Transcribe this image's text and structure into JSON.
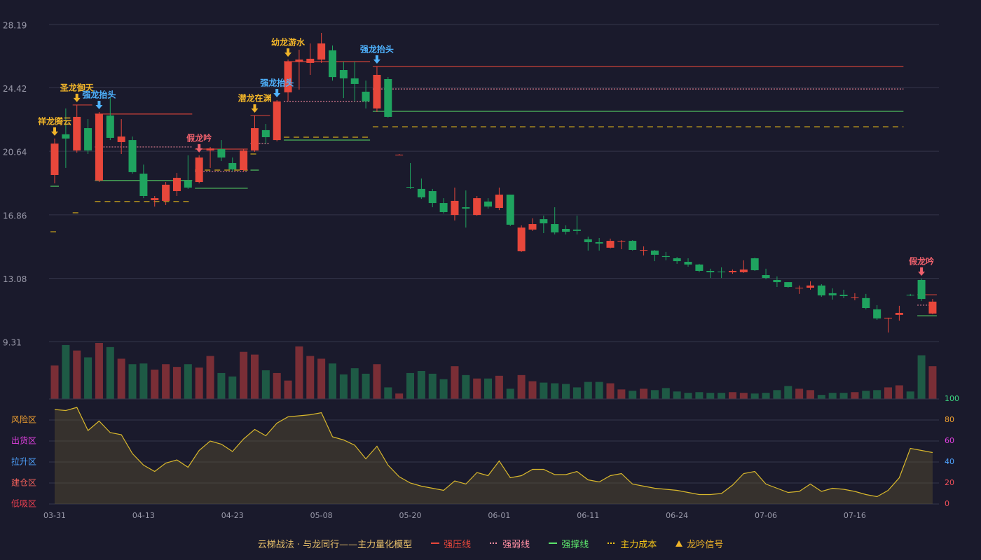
{
  "chart_data": [
    {
      "type": "candlestick",
      "categories": [
        "03-31",
        null,
        null,
        null,
        null,
        null,
        null,
        null,
        "04-13",
        null,
        null,
        null,
        null,
        null,
        null,
        null,
        "04-23",
        null,
        null,
        null,
        null,
        null,
        null,
        null,
        "05-08",
        null,
        null,
        null,
        null,
        null,
        null,
        null,
        "05-20",
        null,
        null,
        null,
        null,
        null,
        null,
        null,
        "06-01",
        null,
        null,
        null,
        null,
        null,
        null,
        null,
        "06-11",
        null,
        null,
        null,
        null,
        null,
        null,
        null,
        "06-24",
        null,
        null,
        null,
        null,
        null,
        null,
        null,
        "07-06",
        null,
        null,
        null,
        null,
        null,
        null,
        null,
        "07-16",
        null,
        null,
        null,
        null,
        null,
        null,
        null
      ],
      "ylim": [
        9.31,
        28.19
      ],
      "yticks": [
        28.19,
        24.42,
        20.64,
        16.86,
        13.08,
        9.31
      ],
      "up_color": "#e8473b",
      "down_color": "#1fa35f",
      "ohlc": [
        [
          19.23,
          21.4,
          18.73,
          21.1
        ],
        [
          21.65,
          23.19,
          19.65,
          21.4
        ],
        [
          20.69,
          23.4,
          20.56,
          22.69
        ],
        [
          22.02,
          22.56,
          20.48,
          20.69
        ],
        [
          18.9,
          22.98,
          18.81,
          22.86
        ],
        [
          22.77,
          23.81,
          21.31,
          21.44
        ],
        [
          21.19,
          22.56,
          20.48,
          21.52
        ],
        [
          21.31,
          21.52,
          19.31,
          19.4
        ],
        [
          19.31,
          19.85,
          17.85,
          17.98
        ],
        [
          17.73,
          17.98,
          17.35,
          17.85
        ],
        [
          17.69,
          18.81,
          17.44,
          18.65
        ],
        [
          18.27,
          19.35,
          17.98,
          19.06
        ],
        [
          18.9,
          20.4,
          18.4,
          18.48
        ],
        [
          18.81,
          20.4,
          18.73,
          20.27
        ],
        [
          20.69,
          20.9,
          19.65,
          20.81
        ],
        [
          20.77,
          21.31,
          20.06,
          20.27
        ],
        [
          19.94,
          20.27,
          19.44,
          19.56
        ],
        [
          19.52,
          20.77,
          19.44,
          20.69
        ],
        [
          20.69,
          22.77,
          20.61,
          22.02
        ],
        [
          21.9,
          22.27,
          21.1,
          21.48
        ],
        [
          21.31,
          23.69,
          21.23,
          23.61
        ],
        [
          24.15,
          26.1,
          23.61,
          25.98
        ],
        [
          25.98,
          26.69,
          24.31,
          26.1
        ],
        [
          25.9,
          27.06,
          25.19,
          26.15
        ],
        [
          26.1,
          27.69,
          25.9,
          27.06
        ],
        [
          26.65,
          26.94,
          24.85,
          25.06
        ],
        [
          25.48,
          25.98,
          23.81,
          24.98
        ],
        [
          24.98,
          25.98,
          23.61,
          24.65
        ],
        [
          24.19,
          24.85,
          23.19,
          23.61
        ],
        [
          23.19,
          25.69,
          22.98,
          25.19
        ],
        [
          24.94,
          25.06,
          22.65,
          22.69
        ],
        [
          20.4,
          20.48,
          20.4,
          20.44
        ],
        [
          18.52,
          19.94,
          18.4,
          18.48
        ],
        [
          18.4,
          19.02,
          17.81,
          17.9
        ],
        [
          18.27,
          18.4,
          17.31,
          17.56
        ],
        [
          17.56,
          17.85,
          16.94,
          17.02
        ],
        [
          16.85,
          18.48,
          16.52,
          17.69
        ],
        [
          17.31,
          18.31,
          16.1,
          17.23
        ],
        [
          16.85,
          17.98,
          16.81,
          17.85
        ],
        [
          17.65,
          17.85,
          17.23,
          17.35
        ],
        [
          17.27,
          18.48,
          17.14,
          18.06
        ],
        [
          18.06,
          18.06,
          16.19,
          16.27
        ],
        [
          14.69,
          16.23,
          14.65,
          16.1
        ],
        [
          15.98,
          16.65,
          15.9,
          16.31
        ],
        [
          16.6,
          16.81,
          15.77,
          16.35
        ],
        [
          16.31,
          17.31,
          15.69,
          15.81
        ],
        [
          16.02,
          16.23,
          15.69,
          15.85
        ],
        [
          15.98,
          16.81,
          15.69,
          15.9
        ],
        [
          15.4,
          15.56,
          14.73,
          15.23
        ],
        [
          15.23,
          15.48,
          14.73,
          15.15
        ],
        [
          14.9,
          15.44,
          14.86,
          15.31
        ],
        [
          15.27,
          15.35,
          14.81,
          15.31
        ],
        [
          15.31,
          15.35,
          14.73,
          14.77
        ],
        [
          14.73,
          14.98,
          14.44,
          14.77
        ],
        [
          14.73,
          14.77,
          14.1,
          14.48
        ],
        [
          14.4,
          14.65,
          14.15,
          14.35
        ],
        [
          14.27,
          14.35,
          13.94,
          14.1
        ],
        [
          14.06,
          14.27,
          13.77,
          13.9
        ],
        [
          13.9,
          13.94,
          13.44,
          13.52
        ],
        [
          13.52,
          13.65,
          13.1,
          13.44
        ],
        [
          13.48,
          13.73,
          13.1,
          13.44
        ],
        [
          13.44,
          13.6,
          13.35,
          13.52
        ],
        [
          13.44,
          14.15,
          13.4,
          13.6
        ],
        [
          14.27,
          14.31,
          13.52,
          13.56
        ],
        [
          13.27,
          13.65,
          13.02,
          13.1
        ],
        [
          12.98,
          13.19,
          12.56,
          12.85
        ],
        [
          12.85,
          12.85,
          12.52,
          12.56
        ],
        [
          12.48,
          12.65,
          12.15,
          12.52
        ],
        [
          12.52,
          12.9,
          12.4,
          12.65
        ],
        [
          12.65,
          12.73,
          11.98,
          12.06
        ],
        [
          12.19,
          12.48,
          11.81,
          12.06
        ],
        [
          12.1,
          12.4,
          11.9,
          12.02
        ],
        [
          11.9,
          12.19,
          11.77,
          11.94
        ],
        [
          11.9,
          12.15,
          11.23,
          11.31
        ],
        [
          11.23,
          11.48,
          10.6,
          10.69
        ],
        [
          10.69,
          10.73,
          9.85,
          10.73
        ],
        [
          10.9,
          11.44,
          10.56,
          11.02
        ],
        [
          12.1,
          12.15,
          12.02,
          12.06
        ],
        [
          12.98,
          13.06,
          11.73,
          11.85
        ],
        [
          10.98,
          11.85,
          10.94,
          11.69
        ]
      ],
      "lines": [
        {
          "name": "强压线",
          "color": "#e8473b",
          "dash": "none",
          "segments": [
            {
              "from": 2,
              "to": 3,
              "value": 23.4
            },
            {
              "from": 4,
              "to": 12,
              "value": 22.86
            },
            {
              "from": 13,
              "to": 17,
              "value": 20.77
            },
            {
              "from": 18,
              "to": 19,
              "value": 22.77
            },
            {
              "from": 21,
              "to": 28,
              "value": 25.98
            },
            {
              "from": 29,
              "to": 76,
              "value": 25.69
            },
            {
              "from": 78,
              "to": 79,
              "value": 12.1
            }
          ]
        },
        {
          "name": "强弱线",
          "color": "#ff8fa3",
          "dash": "2,2",
          "segments": [
            {
              "from": 4,
              "to": 12,
              "value": 20.9
            },
            {
              "from": 13,
              "to": 17,
              "value": 19.44
            },
            {
              "from": 18,
              "to": 19,
              "value": 21.1
            },
            {
              "from": 21,
              "to": 28,
              "value": 23.61
            },
            {
              "from": 29,
              "to": 76,
              "value": 24.35
            },
            {
              "from": 78,
              "to": 79,
              "value": 11.48
            }
          ]
        },
        {
          "name": "强撑线",
          "color": "#5be36b",
          "dash": "none",
          "segments": [
            {
              "from": 0,
              "to": 0,
              "value": 18.56
            },
            {
              "from": 4,
              "to": 12,
              "value": 18.9
            },
            {
              "from": 13,
              "to": 17,
              "value": 18.44
            },
            {
              "from": 18,
              "to": 18,
              "value": 19.52
            },
            {
              "from": 21,
              "to": 28,
              "value": 21.31
            },
            {
              "from": 29,
              "to": 76,
              "value": 23.02
            },
            {
              "from": 78,
              "to": 79,
              "value": 10.85
            }
          ]
        },
        {
          "name": "主力成本",
          "color": "#f5c518",
          "dash": "8,6",
          "segments": [
            {
              "from": 0,
              "to": 0,
              "value": 15.85
            },
            {
              "from": 2,
              "to": 2,
              "value": 16.98
            },
            {
              "from": 4,
              "to": 12,
              "value": 17.65
            },
            {
              "from": 13,
              "to": 17,
              "value": 19.52
            },
            {
              "from": 18,
              "to": 18,
              "value": 20.48
            },
            {
              "from": 21,
              "to": 28,
              "value": 21.48
            },
            {
              "from": 29,
              "to": 76,
              "value": 22.1
            }
          ]
        }
      ],
      "signals_name": "龙吟信号",
      "signals_color": "#f0b429",
      "signals": [
        {
          "index": 0,
          "label": "祥龙腾云",
          "color": "#f0b429"
        },
        {
          "index": 2,
          "label": "圣龙御天",
          "color": "#f0b429"
        },
        {
          "index": 4,
          "label": "强龙抬头",
          "color": "#4fb3ff"
        },
        {
          "index": 13,
          "label": "假龙吟",
          "color": "#f0616d"
        },
        {
          "index": 18,
          "label": "潜龙在渊",
          "color": "#f0b429"
        },
        {
          "index": 20,
          "label": "强龙抬头",
          "color": "#4fb3ff"
        },
        {
          "index": 21,
          "label": "幼龙游水",
          "color": "#f0b429"
        },
        {
          "index": 29,
          "label": "强龙抬头",
          "color": "#4fb3ff"
        },
        {
          "index": 78,
          "label": "假龙吟",
          "color": "#f0616d"
        }
      ],
      "legend_title": "云梯战法 · 与龙同行——主力量化模型"
    },
    {
      "type": "bar",
      "up_color": "#7a2e36",
      "down_color": "#1e5a45",
      "values": [
        49,
        79,
        71,
        61,
        82,
        76,
        59,
        51,
        52,
        43,
        51,
        47,
        51,
        46,
        63,
        38,
        33,
        69,
        65,
        42,
        38,
        27,
        77,
        63,
        59,
        52,
        36,
        45,
        37,
        51,
        17,
        8,
        38,
        41,
        37,
        29,
        48,
        35,
        30,
        30,
        34,
        15,
        35,
        26,
        24,
        23,
        22,
        17,
        25,
        25,
        23,
        14,
        12,
        15,
        13,
        16,
        11,
        9,
        10,
        9,
        9,
        10,
        9,
        8,
        9,
        13,
        19,
        15,
        13,
        6,
        9,
        9,
        10,
        12,
        13,
        17,
        20,
        11,
        64,
        48
      ]
    },
    {
      "type": "line",
      "color": "#d9b82c",
      "ylim": [
        0,
        100
      ],
      "yticks": [
        0,
        20,
        40,
        60,
        80,
        100
      ],
      "ytick_colors": [
        "#f0505a",
        "#f0505a",
        "#4fa3ff",
        "#e040e0",
        "#f0a030",
        "#3ddc84"
      ],
      "zones": [
        {
          "value": 80,
          "label": "风险区",
          "color": "#f0a030"
        },
        {
          "value": 60,
          "label": "出货区",
          "color": "#e040e0"
        },
        {
          "value": 40,
          "label": "拉升区",
          "color": "#4fa3ff"
        },
        {
          "value": 20,
          "label": "建仓区",
          "color": "#f0605a"
        },
        {
          "value": 0,
          "label": "低吸区",
          "color": "#f04050"
        }
      ],
      "values": [
        90,
        89,
        92,
        70,
        79,
        68,
        66,
        48,
        37,
        31,
        39,
        42,
        35,
        51,
        60,
        57,
        50,
        62,
        71,
        65,
        77,
        83,
        84,
        85,
        87,
        64,
        61,
        56,
        43,
        55,
        37,
        26,
        20,
        17,
        15,
        13,
        22,
        19,
        30,
        27,
        41,
        25,
        27,
        33,
        33,
        28,
        28,
        31,
        23,
        21,
        27,
        29,
        19,
        17,
        15,
        14,
        13,
        11,
        9,
        9,
        10,
        18,
        29,
        31,
        19,
        15,
        11,
        12,
        19,
        12,
        15,
        14,
        12,
        9,
        7,
        13,
        25,
        53,
        51,
        49
      ]
    }
  ]
}
